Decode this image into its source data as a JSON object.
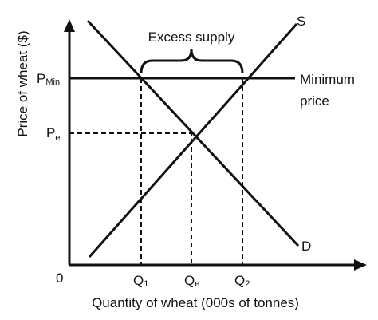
{
  "axes": {
    "y_label": "Price of wheat ($)",
    "x_label": "Quantity of wheat (000s of tonnes)",
    "origin": "0"
  },
  "curves": {
    "supply": "S",
    "demand": "D"
  },
  "price_levels": [
    {
      "symbol": "P",
      "subscript": "Min"
    },
    {
      "symbol": "P",
      "subscript": "e"
    }
  ],
  "minimum_price_label": [
    "Minimum",
    "price"
  ],
  "quantities": [
    {
      "symbol": "Q",
      "subscript": "1"
    },
    {
      "symbol": "Q",
      "subscript": "e"
    },
    {
      "symbol": "Q",
      "subscript": "2"
    }
  ],
  "annotation": "Excess supply"
}
